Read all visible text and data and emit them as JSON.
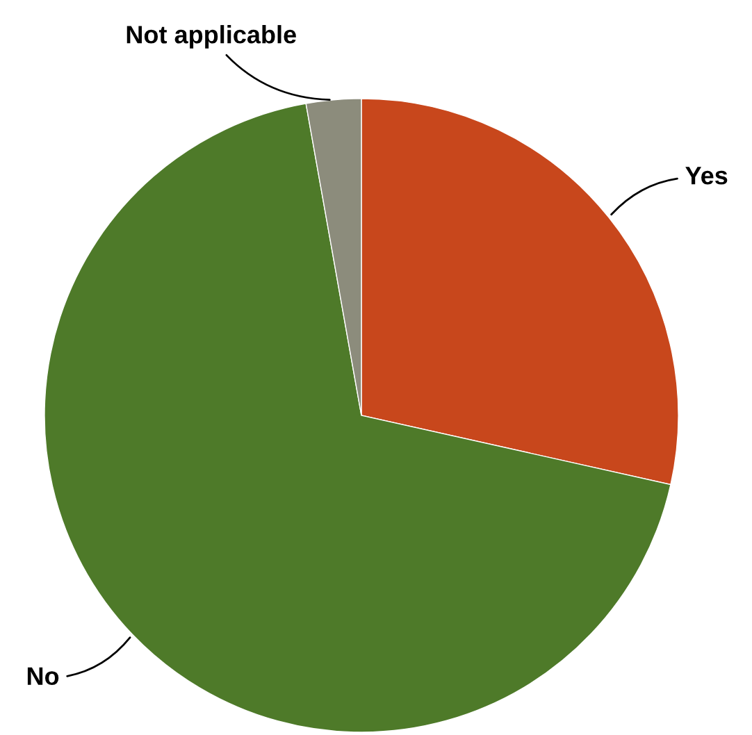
{
  "chart_data": {
    "type": "pie",
    "categories": [
      "Yes",
      "No",
      "Not applicable"
    ],
    "values": [
      28.5,
      68.7,
      2.8
    ],
    "colors": [
      "#c8471c",
      "#4e7a29",
      "#8c8c7c"
    ],
    "legend": false
  }
}
